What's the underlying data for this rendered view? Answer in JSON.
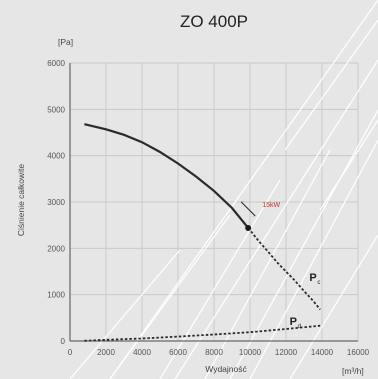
{
  "chart_data": {
    "type": "line",
    "title": "ZO 400P",
    "xlabel": "Wydajność",
    "ylabel": "Ciśnienie całkowite",
    "x_unit": "[m³/h]",
    "y_unit": "[Pa]",
    "xlim": [
      0,
      16000
    ],
    "ylim": [
      0,
      6000
    ],
    "x_ticks": [
      0,
      2000,
      4000,
      6000,
      8000,
      10000,
      12000,
      14000,
      16000
    ],
    "x_tick_labels": [
      "0",
      "2000",
      "4000",
      "6000",
      "8000",
      "10000",
      "12000",
      "14000",
      "16000"
    ],
    "y_ticks": [
      0,
      1000,
      2000,
      3000,
      4000,
      5000,
      6000
    ],
    "y_tick_labels": [
      "0",
      "1000",
      "2000",
      "3000",
      "4000",
      "5000",
      "6000"
    ],
    "grid": true,
    "series": [
      {
        "name": "Pc",
        "label_main": "P",
        "label_sub": "c",
        "style": "solid",
        "x": [
          800,
          2000,
          3000,
          4000,
          5000,
          6000,
          7000,
          8000,
          9000,
          9900
        ],
        "y": [
          4680,
          4570,
          4450,
          4290,
          4080,
          3830,
          3550,
          3240,
          2870,
          2440
        ]
      },
      {
        "name": "Pc-extension",
        "style": "dashed",
        "x": [
          9900,
          10500,
          11000,
          11500,
          12000,
          12500,
          13000,
          13500,
          13900
        ],
        "y": [
          2440,
          2150,
          1930,
          1700,
          1500,
          1300,
          1080,
          870,
          680
        ]
      },
      {
        "name": "Pd",
        "label_main": "P",
        "label_sub": "d",
        "style": "dashed",
        "x": [
          800,
          2000,
          4000,
          6000,
          8000,
          10000,
          12000,
          13900
        ],
        "y": [
          5,
          25,
          55,
          95,
          140,
          190,
          260,
          330
        ]
      }
    ],
    "annotation": {
      "text": "15kW",
      "color": "#c0392b",
      "point": [
        9900,
        2440
      ]
    }
  }
}
